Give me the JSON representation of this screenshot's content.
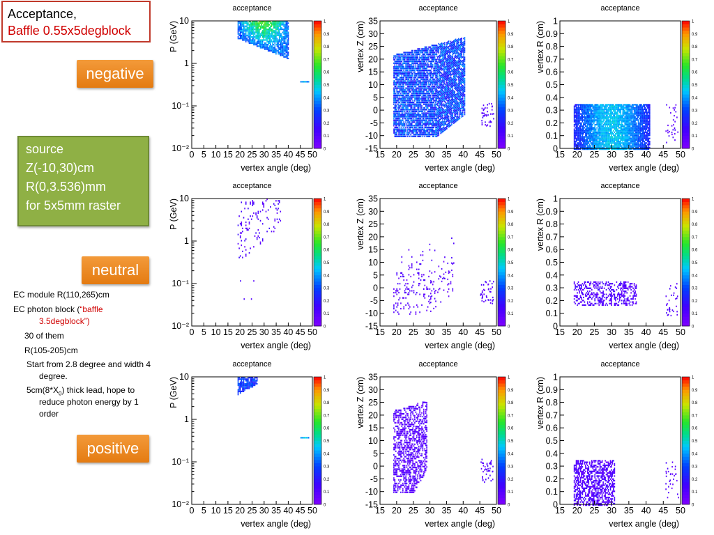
{
  "slide": {
    "title_line1": "Acceptance,",
    "title_line2": "Baffle 0.55x5degblock",
    "labels": {
      "negative": "negative",
      "neutral": "neutral",
      "positive": "positive"
    },
    "source_lines": [
      "source",
      "Z(-10,30)cm",
      "R(0,3.536)mm",
      "for 5x5mm raster"
    ],
    "notes": {
      "ec_module": "EC module R(110,265)cm",
      "ec_photon": "EC photon block (",
      "ec_photon_red": "“baffle",
      "ec_photon_red2": "3.5degblock”)",
      "count": "30 of them",
      "radius": "R(105-205)cm",
      "start": "Start from 2.8 degree and width 4",
      "start2": "degree.",
      "lead_pre": "5cm(8*X",
      "lead_sub": "0",
      "lead_post": ") thick lead, hope to",
      "lead2": "reduce photon energy by 1",
      "lead3": "order"
    }
  },
  "chart_data": [
    {
      "type": "heatmap",
      "title": "acceptance",
      "row": "negative",
      "xlabel": "vertex angle (deg)",
      "ylabel": "P (GeV)",
      "xlim": [
        0,
        50
      ],
      "ylim": [
        0.01,
        10
      ],
      "ylog": true,
      "xticks": [
        "0",
        "5",
        "10",
        "15",
        "20",
        "25",
        "30",
        "35",
        "40",
        "45",
        "50"
      ],
      "yticks": [
        "10⁻²",
        "10⁻¹",
        "1",
        "10"
      ],
      "zlim": [
        0,
        1
      ],
      "zticks": [
        "0",
        "0.1",
        "0.2",
        "0.3",
        "0.4",
        "0.5",
        "0.6",
        "0.7",
        "0.8",
        "0.9",
        "1"
      ]
    },
    {
      "type": "heatmap",
      "title": "acceptance",
      "row": "negative",
      "xlabel": "vertex angle (deg)",
      "ylabel": "vertex Z (cm)",
      "xlim": [
        15,
        50
      ],
      "ylim": [
        -15,
        35
      ],
      "ylog": false,
      "xticks": [
        "15",
        "20",
        "25",
        "30",
        "35",
        "40",
        "45",
        "50"
      ],
      "yticks": [
        "-15",
        "-10",
        "-5",
        "0",
        "5",
        "10",
        "15",
        "20",
        "25",
        "30",
        "35"
      ],
      "zlim": [
        0,
        1
      ],
      "zticks": [
        "0",
        "0.1",
        "0.2",
        "0.3",
        "0.4",
        "0.5",
        "0.6",
        "0.7",
        "0.8",
        "0.9",
        "1"
      ]
    },
    {
      "type": "heatmap",
      "title": "acceptance",
      "row": "negative",
      "xlabel": "vertex angle (deg)",
      "ylabel": "vertex R (cm)",
      "xlim": [
        15,
        50
      ],
      "ylim": [
        0,
        1
      ],
      "ylog": false,
      "xticks": [
        "15",
        "20",
        "25",
        "30",
        "35",
        "40",
        "45",
        "50"
      ],
      "yticks": [
        "0",
        "0.1",
        "0.2",
        "0.3",
        "0.4",
        "0.5",
        "0.6",
        "0.7",
        "0.8",
        "0.9",
        "1"
      ],
      "zlim": [
        0,
        1
      ],
      "zticks": [
        "0",
        "0.1",
        "0.2",
        "0.3",
        "0.4",
        "0.5",
        "0.6",
        "0.7",
        "0.8",
        "0.9",
        "1"
      ]
    },
    {
      "type": "heatmap",
      "title": "acceptance",
      "row": "neutral",
      "xlabel": "vertex angle (deg)",
      "ylabel": "P (GeV)",
      "xlim": [
        0,
        50
      ],
      "ylim": [
        0.01,
        10
      ],
      "ylog": true,
      "xticks": [
        "0",
        "5",
        "10",
        "15",
        "20",
        "25",
        "30",
        "35",
        "40",
        "45",
        "50"
      ],
      "yticks": [
        "10⁻²",
        "10⁻¹",
        "1",
        "10"
      ],
      "zlim": [
        0,
        1
      ],
      "zticks": [
        "0",
        "0.1",
        "0.2",
        "0.3",
        "0.4",
        "0.5",
        "0.6",
        "0.7",
        "0.8",
        "0.9",
        "1"
      ]
    },
    {
      "type": "heatmap",
      "title": "acceptance",
      "row": "neutral",
      "xlabel": "vertex angle (deg)",
      "ylabel": "vertex Z (cm)",
      "xlim": [
        15,
        50
      ],
      "ylim": [
        -15,
        35
      ],
      "ylog": false,
      "xticks": [
        "15",
        "20",
        "25",
        "30",
        "35",
        "40",
        "45",
        "50"
      ],
      "yticks": [
        "-15",
        "-10",
        "-5",
        "0",
        "5",
        "10",
        "15",
        "20",
        "25",
        "30",
        "35"
      ],
      "zlim": [
        0,
        1
      ],
      "zticks": [
        "0",
        "0.1",
        "0.2",
        "0.3",
        "0.4",
        "0.5",
        "0.6",
        "0.7",
        "0.8",
        "0.9",
        "1"
      ]
    },
    {
      "type": "heatmap",
      "title": "acceptance",
      "row": "neutral",
      "xlabel": "vertex angle (deg)",
      "ylabel": "vertex R (cm)",
      "xlim": [
        15,
        50
      ],
      "ylim": [
        0,
        1
      ],
      "ylog": false,
      "xticks": [
        "15",
        "20",
        "25",
        "30",
        "35",
        "40",
        "45",
        "50"
      ],
      "yticks": [
        "0",
        "0.1",
        "0.2",
        "0.3",
        "0.4",
        "0.5",
        "0.6",
        "0.7",
        "0.8",
        "0.9",
        "1"
      ],
      "zlim": [
        0,
        1
      ],
      "zticks": [
        "0",
        "0.1",
        "0.2",
        "0.3",
        "0.4",
        "0.5",
        "0.6",
        "0.7",
        "0.8",
        "0.9",
        "1"
      ]
    },
    {
      "type": "heatmap",
      "title": "acceptance",
      "row": "positive",
      "xlabel": "vertex angle (deg)",
      "ylabel": "P (GeV)",
      "xlim": [
        0,
        50
      ],
      "ylim": [
        0.01,
        10
      ],
      "ylog": true,
      "xticks": [
        "0",
        "5",
        "10",
        "15",
        "20",
        "25",
        "30",
        "35",
        "40",
        "45",
        "50"
      ],
      "yticks": [
        "10⁻²",
        "10⁻¹",
        "1",
        "10"
      ],
      "zlim": [
        0,
        1
      ],
      "zticks": [
        "0",
        "0.1",
        "0.2",
        "0.3",
        "0.4",
        "0.5",
        "0.6",
        "0.7",
        "0.8",
        "0.9",
        "1"
      ]
    },
    {
      "type": "heatmap",
      "title": "acceptance",
      "row": "positive",
      "xlabel": "vertex angle (deg)",
      "ylabel": "vertex Z (cm)",
      "xlim": [
        15,
        50
      ],
      "ylim": [
        -15,
        35
      ],
      "ylog": false,
      "xticks": [
        "15",
        "20",
        "25",
        "30",
        "35",
        "40",
        "45",
        "50"
      ],
      "yticks": [
        "-15",
        "-10",
        "-5",
        "0",
        "5",
        "10",
        "15",
        "20",
        "25",
        "30",
        "35"
      ],
      "zlim": [
        0,
        1
      ],
      "zticks": [
        "0",
        "0.1",
        "0.2",
        "0.3",
        "0.4",
        "0.5",
        "0.6",
        "0.7",
        "0.8",
        "0.9",
        "1"
      ]
    },
    {
      "type": "heatmap",
      "title": "acceptance",
      "row": "positive",
      "xlabel": "vertex angle (deg)",
      "ylabel": "vertex R (cm)",
      "xlim": [
        15,
        50
      ],
      "ylim": [
        0,
        1
      ],
      "ylog": false,
      "xticks": [
        "15",
        "20",
        "25",
        "30",
        "35",
        "40",
        "45",
        "50"
      ],
      "yticks": [
        "0",
        "0.1",
        "0.2",
        "0.3",
        "0.4",
        "0.5",
        "0.6",
        "0.7",
        "0.8",
        "0.9",
        "1"
      ],
      "zlim": [
        0,
        1
      ],
      "zticks": [
        "0",
        "0.1",
        "0.2",
        "0.3",
        "0.4",
        "0.5",
        "0.6",
        "0.7",
        "0.8",
        "0.9",
        "1"
      ]
    }
  ]
}
